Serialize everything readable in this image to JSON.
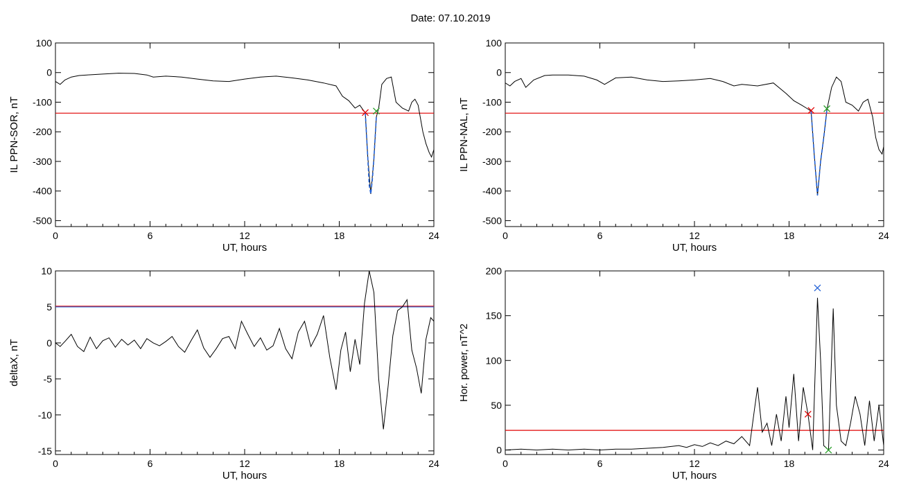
{
  "title": "Date:  07.10.2019",
  "chart_data": [
    {
      "id": "sor",
      "type": "line",
      "xlabel": "UT, hours",
      "ylabel": "IL PPN-SOR, nT",
      "xlim": [
        0,
        24
      ],
      "ylim": [
        -520,
        100
      ],
      "xticks": [
        0,
        6,
        12,
        18,
        24
      ],
      "yticks": [
        100,
        0,
        -100,
        -200,
        -300,
        -400,
        -500
      ],
      "series": [
        {
          "color": "#000000",
          "x": [
            0,
            0.3,
            0.6,
            1,
            1.5,
            2,
            3,
            4,
            5,
            5.8,
            6.2,
            7,
            8,
            9,
            10,
            11,
            12,
            13,
            14,
            15,
            16,
            17,
            17.8,
            18.2,
            18.6,
            19.0,
            19.3,
            19.5,
            19.65,
            19.8,
            20.0,
            20.2,
            20.35,
            20.5,
            20.7,
            21.0,
            21.3,
            21.6,
            22.0,
            22.4,
            22.6,
            22.8,
            23.0,
            23.3,
            23.5,
            23.7,
            23.85,
            24
          ],
          "y": [
            -30,
            -40,
            -25,
            -15,
            -10,
            -8,
            -5,
            -2,
            -3,
            -8,
            -15,
            -12,
            -15,
            -22,
            -28,
            -30,
            -22,
            -15,
            -12,
            -18,
            -25,
            -35,
            -45,
            -80,
            -95,
            -120,
            -110,
            -125,
            -135,
            -280,
            -410,
            -290,
            -150,
            -120,
            -40,
            -20,
            -15,
            -100,
            -120,
            -130,
            -100,
            -90,
            -110,
            -200,
            -240,
            -270,
            -285,
            -260
          ]
        },
        {
          "color": "#1f5fd6",
          "x": [
            19.65,
            19.8,
            19.9,
            20.0,
            20.1,
            20.2,
            20.35
          ],
          "y": [
            -135,
            -280,
            -380,
            -410,
            -360,
            -290,
            -150
          ]
        }
      ],
      "hlines": [
        {
          "y": -137,
          "color": "#e00000"
        }
      ],
      "markers": [
        {
          "x": 19.65,
          "y": -135,
          "color": "#e00000"
        },
        {
          "x": 20.35,
          "y": -130,
          "color": "#2aa02a"
        }
      ]
    },
    {
      "id": "nal",
      "type": "line",
      "xlabel": "UT, hours",
      "ylabel": "IL PPN-NAL, nT",
      "xlim": [
        0,
        24
      ],
      "ylim": [
        -520,
        100
      ],
      "xticks": [
        0,
        6,
        12,
        18,
        24
      ],
      "yticks": [
        100,
        0,
        -100,
        -200,
        -300,
        -400,
        -500
      ],
      "series": [
        {
          "color": "#000000",
          "x": [
            0,
            0.3,
            0.6,
            1,
            1.3,
            1.8,
            2.5,
            3,
            4,
            5,
            5.8,
            6.3,
            7,
            8,
            9,
            10,
            11,
            12,
            13,
            13.8,
            14.5,
            15,
            16,
            17,
            17.8,
            18.3,
            18.8,
            19.1,
            19.4,
            19.6,
            19.8,
            20.0,
            20.2,
            20.4,
            20.7,
            21.0,
            21.3,
            21.6,
            22.0,
            22.4,
            22.7,
            23.0,
            23.3,
            23.5,
            23.7,
            23.9,
            24
          ],
          "y": [
            -35,
            -45,
            -30,
            -20,
            -50,
            -25,
            -10,
            -8,
            -8,
            -12,
            -25,
            -40,
            -18,
            -15,
            -25,
            -30,
            -28,
            -25,
            -20,
            -30,
            -45,
            -40,
            -45,
            -35,
            -70,
            -95,
            -110,
            -120,
            -130,
            -280,
            -415,
            -300,
            -220,
            -125,
            -50,
            -15,
            -30,
            -100,
            -110,
            -130,
            -100,
            -90,
            -150,
            -220,
            -260,
            -275,
            -250
          ]
        },
        {
          "color": "#1f5fd6",
          "x": [
            19.4,
            19.6,
            19.8,
            20.0,
            20.2,
            20.4
          ],
          "y": [
            -130,
            -280,
            -415,
            -300,
            -220,
            -125
          ]
        }
      ],
      "hlines": [
        {
          "y": -137,
          "color": "#e00000"
        }
      ],
      "markers": [
        {
          "x": 19.4,
          "y": -128,
          "color": "#e00000"
        },
        {
          "x": 20.4,
          "y": -122,
          "color": "#2aa02a"
        }
      ]
    },
    {
      "id": "deltax",
      "type": "line",
      "xlabel": "UT, hours",
      "ylabel": "deltaX, nT",
      "xlim": [
        0,
        24
      ],
      "ylim": [
        -15.5,
        10
      ],
      "xticks": [
        0,
        6,
        12,
        18,
        24
      ],
      "yticks": [
        10,
        5,
        0,
        -5,
        -10,
        -15
      ],
      "series": [
        {
          "color": "#000000",
          "x": [
            0,
            0.3,
            0.6,
            1.0,
            1.4,
            1.8,
            2.2,
            2.6,
            3.0,
            3.4,
            3.8,
            4.2,
            4.6,
            5.0,
            5.4,
            5.8,
            6.2,
            6.6,
            7.0,
            7.4,
            7.8,
            8.2,
            8.6,
            9.0,
            9.4,
            9.8,
            10.2,
            10.6,
            11.0,
            11.4,
            11.8,
            12.2,
            12.6,
            13.0,
            13.4,
            13.8,
            14.2,
            14.6,
            15.0,
            15.4,
            15.8,
            16.2,
            16.6,
            17.0,
            17.4,
            17.8,
            18.1,
            18.4,
            18.7,
            19.0,
            19.3,
            19.6,
            19.9,
            20.2,
            20.5,
            20.8,
            21.1,
            21.4,
            21.7,
            22.0,
            22.3,
            22.6,
            22.9,
            23.2,
            23.5,
            23.8,
            24.0
          ],
          "y": [
            0,
            -0.5,
            0.2,
            1.2,
            -0.5,
            -1.2,
            0.8,
            -0.8,
            0.3,
            0.7,
            -0.6,
            0.5,
            -0.3,
            0.4,
            -0.8,
            0.6,
            0,
            -0.4,
            0.2,
            0.9,
            -0.5,
            -1.3,
            0.3,
            1.8,
            -0.7,
            -2.0,
            -0.8,
            0.6,
            0.9,
            -0.8,
            3.0,
            1.2,
            -0.5,
            0.7,
            -1.0,
            -0.4,
            2.0,
            -0.8,
            -2.2,
            1.5,
            3.0,
            -0.5,
            1.2,
            3.8,
            -2.0,
            -6.5,
            -1.0,
            1.5,
            -4.0,
            0.5,
            -3.0,
            5.5,
            10.0,
            7.0,
            -5.0,
            -12.0,
            -6.0,
            1.0,
            4.5,
            5.0,
            6.0,
            -1.0,
            -3.5,
            -7.0,
            0.5,
            3.5,
            3.0
          ]
        }
      ],
      "hlines": [
        {
          "y": 5.1,
          "color": "#e00000"
        },
        {
          "y": 5.0,
          "color": "#1f5fd6"
        }
      ],
      "markers": []
    },
    {
      "id": "power",
      "type": "line",
      "xlabel": "UT, hours",
      "ylabel": "Hor. power, nT^2",
      "xlim": [
        0,
        24
      ],
      "ylim": [
        -5,
        200
      ],
      "xticks": [
        0,
        6,
        12,
        18,
        24
      ],
      "yticks": [
        200,
        150,
        100,
        50,
        0
      ],
      "series": [
        {
          "color": "#000000",
          "x": [
            0,
            1,
            2,
            3,
            4,
            5,
            6,
            7,
            8,
            9,
            10,
            11,
            11.5,
            12,
            12.5,
            13,
            13.5,
            14,
            14.5,
            15,
            15.5,
            15.8,
            16.0,
            16.3,
            16.6,
            16.9,
            17.2,
            17.5,
            17.8,
            18.0,
            18.3,
            18.6,
            18.9,
            19.2,
            19.5,
            19.8,
            20.0,
            20.2,
            20.5,
            20.8,
            21.0,
            21.3,
            21.6,
            21.9,
            22.2,
            22.5,
            22.8,
            23.1,
            23.4,
            23.7,
            24.0
          ],
          "y": [
            0,
            1,
            0,
            1,
            0,
            1,
            0,
            1,
            1,
            2,
            3,
            5,
            3,
            6,
            4,
            8,
            5,
            10,
            7,
            15,
            5,
            45,
            70,
            20,
            30,
            5,
            40,
            10,
            60,
            25,
            85,
            10,
            70,
            40,
            0,
            170,
            100,
            5,
            0,
            158,
            50,
            10,
            5,
            30,
            60,
            40,
            5,
            55,
            10,
            50,
            5
          ]
        }
      ],
      "hlines": [
        {
          "y": 22,
          "color": "#e00000"
        }
      ],
      "markers": [
        {
          "x": 19.8,
          "y": 181,
          "color": "#1f5fd6"
        },
        {
          "x": 19.2,
          "y": 40,
          "color": "#e00000"
        },
        {
          "x": 20.5,
          "y": 0,
          "color": "#2aa02a"
        }
      ]
    }
  ]
}
